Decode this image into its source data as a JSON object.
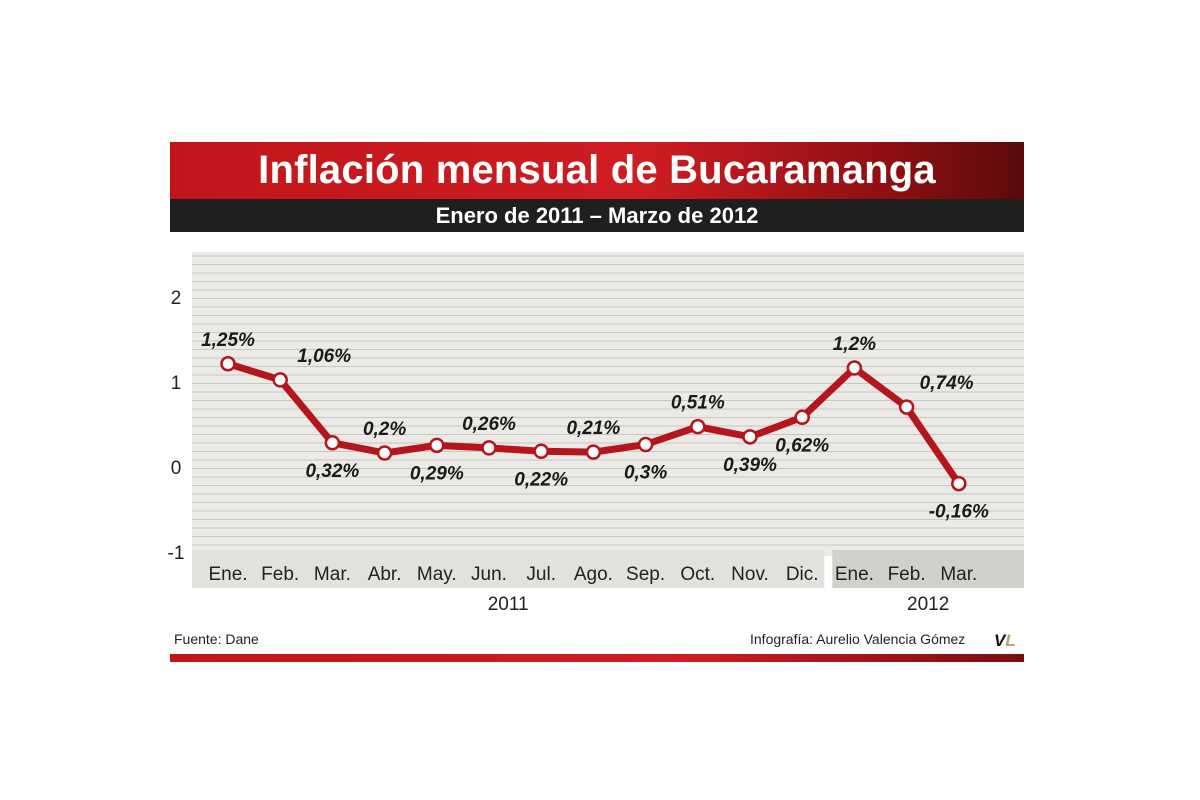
{
  "title": "Inflación mensual de Bucaramanga",
  "subtitle": "Enero de 2011 – Marzo de 2012",
  "source": "Fuente: Dane",
  "credit": "Infografía: Aurelio Valencia Gómez",
  "logo": {
    "v": "V",
    "l": "L"
  },
  "colors": {
    "line": "#b5161b",
    "marker_fill": "#ffffff",
    "bg": "#eceae6",
    "grid": "#c9c7c3"
  },
  "chart_data": {
    "type": "line",
    "y_ticks": [
      "2",
      "1",
      "0",
      "-1"
    ],
    "ylim": [
      -1,
      2.5
    ],
    "grid": true,
    "categories": [
      "Ene.",
      "Feb.",
      "Mar.",
      "Abr.",
      "May.",
      "Jun.",
      "Jul.",
      "Ago.",
      "Sep.",
      "Oct.",
      "Nov.",
      "Dic.",
      "Ene.",
      "Feb.",
      "Mar."
    ],
    "year_groups": [
      {
        "label": "2011",
        "count": 12
      },
      {
        "label": "2012",
        "count": 3
      }
    ],
    "values": [
      1.25,
      1.06,
      0.32,
      0.2,
      0.29,
      0.26,
      0.22,
      0.21,
      0.3,
      0.51,
      0.39,
      0.62,
      1.2,
      0.74,
      -0.16
    ],
    "labels": [
      "1,25%",
      "1,06%",
      "0,32%",
      "0,2%",
      "0,29%",
      "0,26%",
      "0,22%",
      "0,21%",
      "0,3%",
      "0,51%",
      "0,39%",
      "0,62%",
      "1,2%",
      "0,74%",
      "-0,16%"
    ],
    "label_positions": [
      "above",
      "above",
      "below",
      "above",
      "below",
      "above",
      "below",
      "above",
      "below",
      "above",
      "below",
      "below",
      "above",
      "above",
      "below"
    ]
  }
}
